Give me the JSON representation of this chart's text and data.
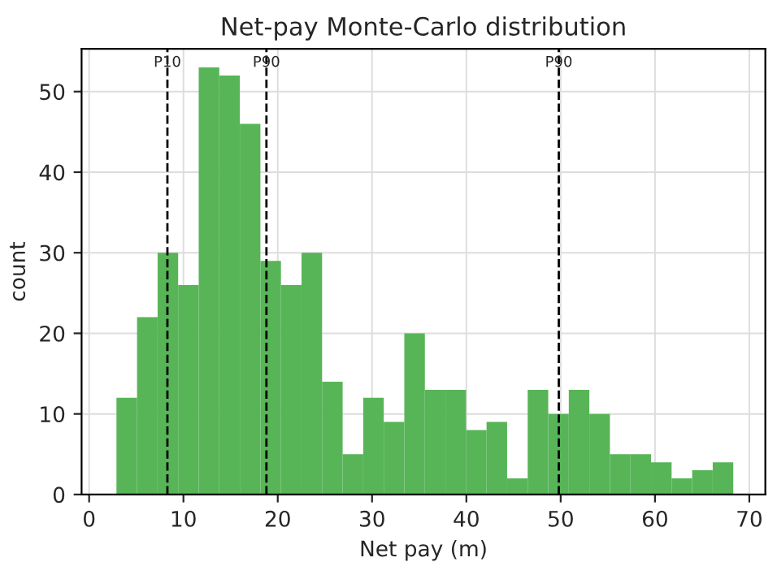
{
  "chart_data": {
    "type": "histogram",
    "title": "Net-pay Monte-Carlo distribution",
    "xlabel": "Net pay (m)",
    "ylabel": "count",
    "bins": [
      2.9,
      5.08,
      7.26,
      9.44,
      11.62,
      13.8,
      15.98,
      18.16,
      20.34,
      22.52,
      24.7,
      26.88,
      29.06,
      31.24,
      33.42,
      35.6,
      37.78,
      39.96,
      42.14,
      44.32,
      46.5,
      48.68,
      50.86,
      53.04,
      55.22,
      57.4,
      59.58,
      61.76,
      63.94,
      66.12,
      68.3
    ],
    "values": [
      12,
      22,
      30,
      26,
      53,
      52,
      46,
      29,
      26,
      30,
      14,
      5,
      12,
      9,
      20,
      13,
      13,
      8,
      9,
      2,
      13,
      10,
      13,
      10,
      5,
      5,
      4,
      2,
      3,
      4
    ],
    "color": "#57b557",
    "xlim": [
      -0.8,
      71.7
    ],
    "ylim": [
      0,
      55.3
    ],
    "xticks": [
      0,
      10,
      20,
      30,
      40,
      50,
      60,
      70
    ],
    "yticks": [
      0,
      10,
      20,
      30,
      40,
      50
    ],
    "grid": true,
    "ref_lines": [
      {
        "axis": "x",
        "value": 8.3,
        "label": "P10",
        "color": "#000000",
        "line_style": "dashed"
      },
      {
        "axis": "x",
        "value": 18.8,
        "label": "P90",
        "color": "#000000",
        "line_style": "dashed"
      },
      {
        "axis": "x",
        "value": 49.8,
        "label": "P90",
        "color": "#000000",
        "line_style": "dashed"
      }
    ]
  }
}
